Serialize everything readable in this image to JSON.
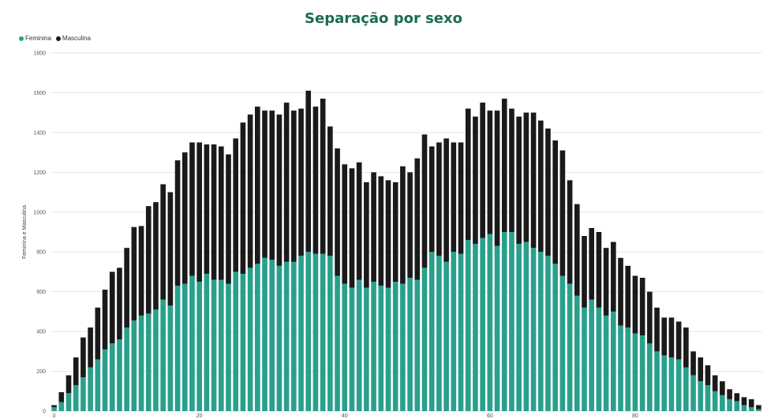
{
  "chart_data": {
    "type": "bar",
    "stacked": true,
    "title": "Separação por sexo",
    "xlabel": "",
    "ylabel": "Feminina e Masculina",
    "ylim": [
      0,
      1800
    ],
    "yticks": [
      0,
      200,
      400,
      600,
      800,
      1000,
      1200,
      1400,
      1600,
      1800
    ],
    "xticks": [
      0,
      20,
      40,
      60,
      80
    ],
    "grid": true,
    "legend_position": "top-left",
    "x": [
      0,
      1,
      2,
      3,
      4,
      5,
      6,
      7,
      8,
      9,
      10,
      11,
      12,
      13,
      14,
      15,
      16,
      17,
      18,
      19,
      20,
      21,
      22,
      23,
      24,
      25,
      26,
      27,
      28,
      29,
      30,
      31,
      32,
      33,
      34,
      35,
      36,
      37,
      38,
      39,
      40,
      41,
      42,
      43,
      44,
      45,
      46,
      47,
      48,
      49,
      50,
      51,
      52,
      53,
      54,
      55,
      56,
      57,
      58,
      59,
      60,
      61,
      62,
      63,
      64,
      65,
      66,
      67,
      68,
      69,
      70,
      71,
      72,
      73,
      74,
      75,
      76,
      77,
      78,
      79,
      80,
      81,
      82,
      83,
      84,
      85,
      86,
      87,
      88,
      89,
      90,
      91,
      92,
      93,
      94,
      95,
      96,
      97
    ],
    "series": [
      {
        "name": "Feminina",
        "color": "#29a08c",
        "values": [
          20,
          45,
          90,
          130,
          170,
          220,
          260,
          310,
          340,
          360,
          420,
          455,
          480,
          490,
          510,
          560,
          530,
          630,
          640,
          680,
          650,
          690,
          660,
          660,
          640,
          700,
          690,
          720,
          740,
          770,
          760,
          730,
          750,
          750,
          780,
          800,
          790,
          790,
          780,
          680,
          640,
          620,
          660,
          620,
          650,
          630,
          620,
          650,
          640,
          670,
          660,
          720,
          800,
          780,
          750,
          800,
          790,
          860,
          840,
          870,
          890,
          830,
          900,
          900,
          840,
          850,
          820,
          800,
          780,
          740,
          680,
          640,
          580,
          520,
          560,
          520,
          480,
          500,
          430,
          420,
          390,
          380,
          340,
          300,
          280,
          270,
          260,
          220,
          180,
          150,
          130,
          100,
          80,
          60,
          50,
          30,
          20,
          10
        ],
        "color_name": "teal"
      },
      {
        "name": "Masculina",
        "color": "#1a1a1a",
        "values": [
          10,
          50,
          90,
          140,
          200,
          200,
          260,
          300,
          360,
          360,
          400,
          470,
          450,
          540,
          540,
          580,
          570,
          630,
          660,
          670,
          700,
          650,
          680,
          670,
          650,
          670,
          760,
          770,
          790,
          740,
          750,
          760,
          800,
          760,
          740,
          810,
          740,
          780,
          650,
          640,
          600,
          600,
          590,
          530,
          550,
          550,
          540,
          500,
          590,
          530,
          610,
          670,
          530,
          570,
          620,
          550,
          560,
          660,
          640,
          680,
          620,
          680,
          670,
          620,
          640,
          650,
          680,
          660,
          640,
          620,
          630,
          520,
          460,
          360,
          360,
          380,
          340,
          350,
          340,
          310,
          290,
          290,
          260,
          220,
          190,
          200,
          190,
          200,
          120,
          120,
          100,
          80,
          70,
          50,
          40,
          40,
          40,
          20
        ],
        "color_name": "black"
      }
    ]
  }
}
